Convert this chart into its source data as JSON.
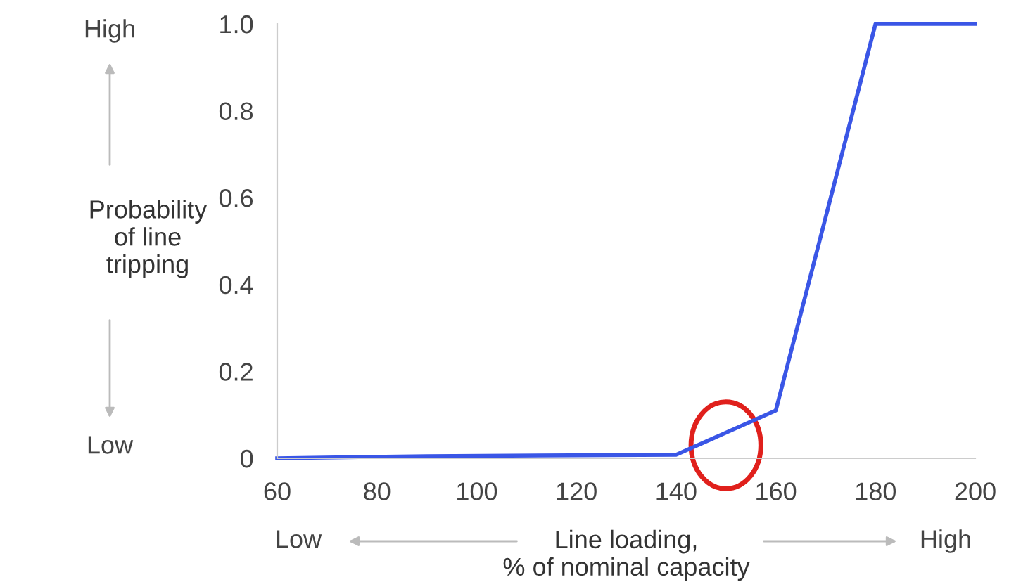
{
  "chart_data": {
    "type": "line",
    "xlabel": "Line loading,\n% of nominal capacity",
    "ylabel": "Probability\nof line\ntripping",
    "annotations": [
      "High",
      "Low",
      "Low",
      "High"
    ],
    "x": [
      60,
      90,
      140,
      160,
      180,
      200
    ],
    "series": [
      {
        "color": "#3a56e6",
        "values": [
          0,
          0.005,
          0.008,
          0.11,
          1.0,
          1.0
        ]
      }
    ],
    "xlim": [
      60,
      200
    ],
    "xticks": [
      60,
      80,
      100,
      120,
      140,
      160,
      180,
      200
    ],
    "ylim": [
      0,
      1
    ],
    "yticks": [
      0,
      0.2,
      0.4,
      0.6,
      0.8,
      {
        "value": 1,
        "label": "1.0"
      }
    ],
    "grid": false,
    "legend": false,
    "marker": "none",
    "line_style": "solid"
  }
}
